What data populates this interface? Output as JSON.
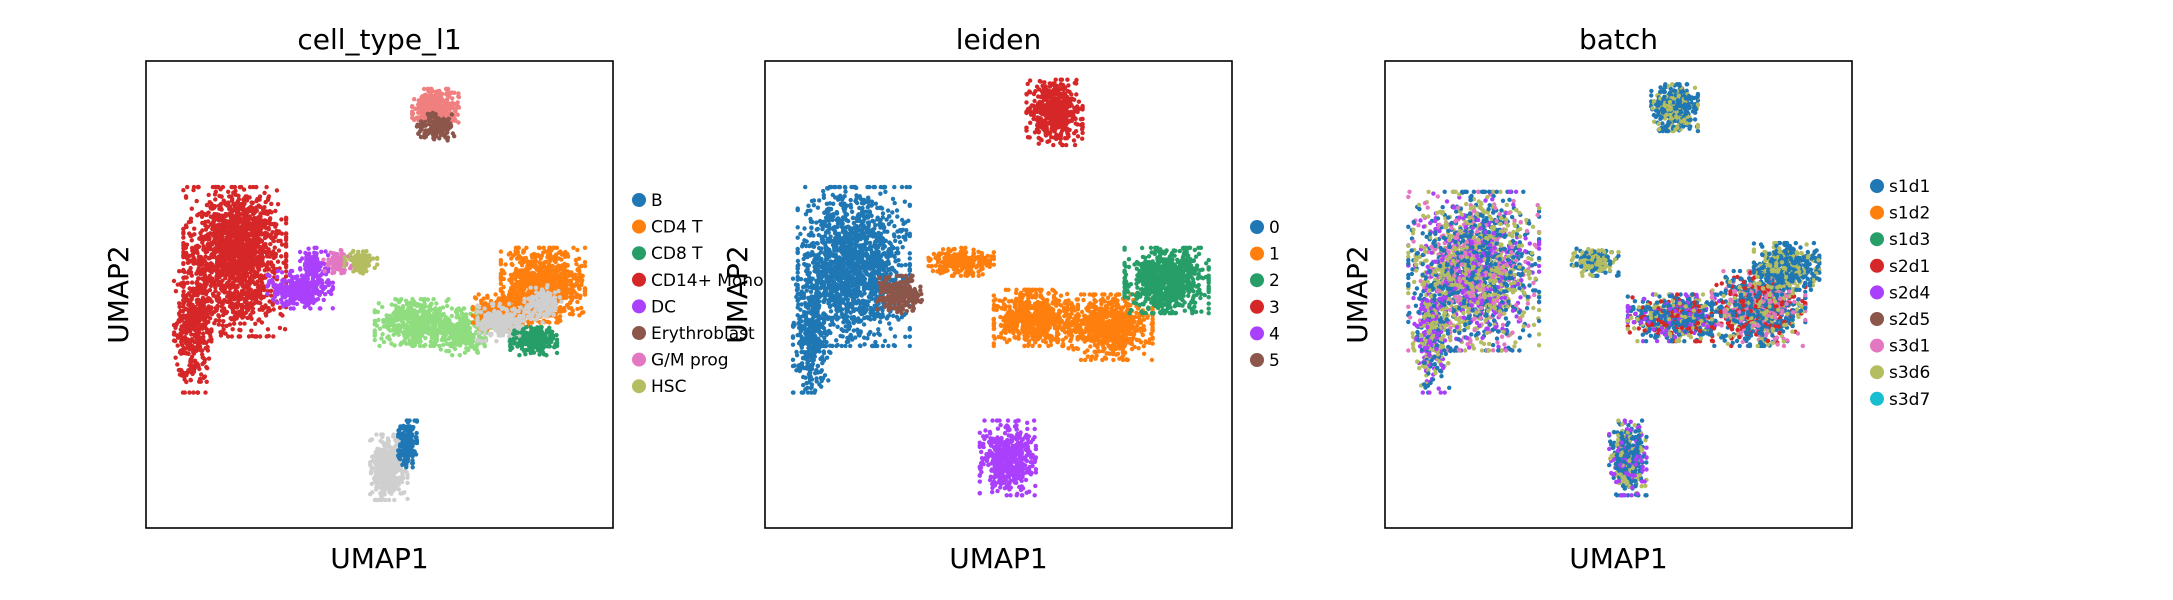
{
  "chart_data": [
    {
      "type": "scatter",
      "title": "cell_type_l1",
      "xlabel": "UMAP1",
      "ylabel": "UMAP2",
      "ticks": "none",
      "legend": "right",
      "categories": [
        "B",
        "CD4 T",
        "CD8 T",
        "CD14+ Mono",
        "DC",
        "Erythroblast",
        "G/M prog",
        "HSC"
      ],
      "colors": [
        "#1f77b4",
        "#ff7f0e",
        "#279e68",
        "#d62728",
        "#aa40fc",
        "#8c564b",
        "#e377c2",
        "#b5bd61"
      ],
      "unlabeled_colors": [
        "#f08080",
        "#90dd80",
        "#cfcfcf"
      ]
    },
    {
      "type": "scatter",
      "title": "leiden",
      "xlabel": "UMAP1",
      "ylabel": "UMAP2",
      "ticks": "none",
      "legend": "right",
      "categories": [
        "0",
        "1",
        "2",
        "3",
        "4",
        "5"
      ],
      "colors": [
        "#1f77b4",
        "#ff7f0e",
        "#279e68",
        "#d62728",
        "#aa40fc",
        "#8c564b"
      ]
    },
    {
      "type": "scatter",
      "title": "batch",
      "xlabel": "UMAP1",
      "ylabel": "UMAP2",
      "ticks": "none",
      "legend": "right",
      "categories": [
        "s1d1",
        "s1d2",
        "s1d3",
        "s2d1",
        "s2d4",
        "s2d5",
        "s3d1",
        "s3d6",
        "s3d7"
      ],
      "colors": [
        "#1f77b4",
        "#ff7f0e",
        "#279e68",
        "#d62728",
        "#aa40fc",
        "#8c564b",
        "#e377c2",
        "#b5bd61",
        "#17becf"
      ]
    }
  ]
}
